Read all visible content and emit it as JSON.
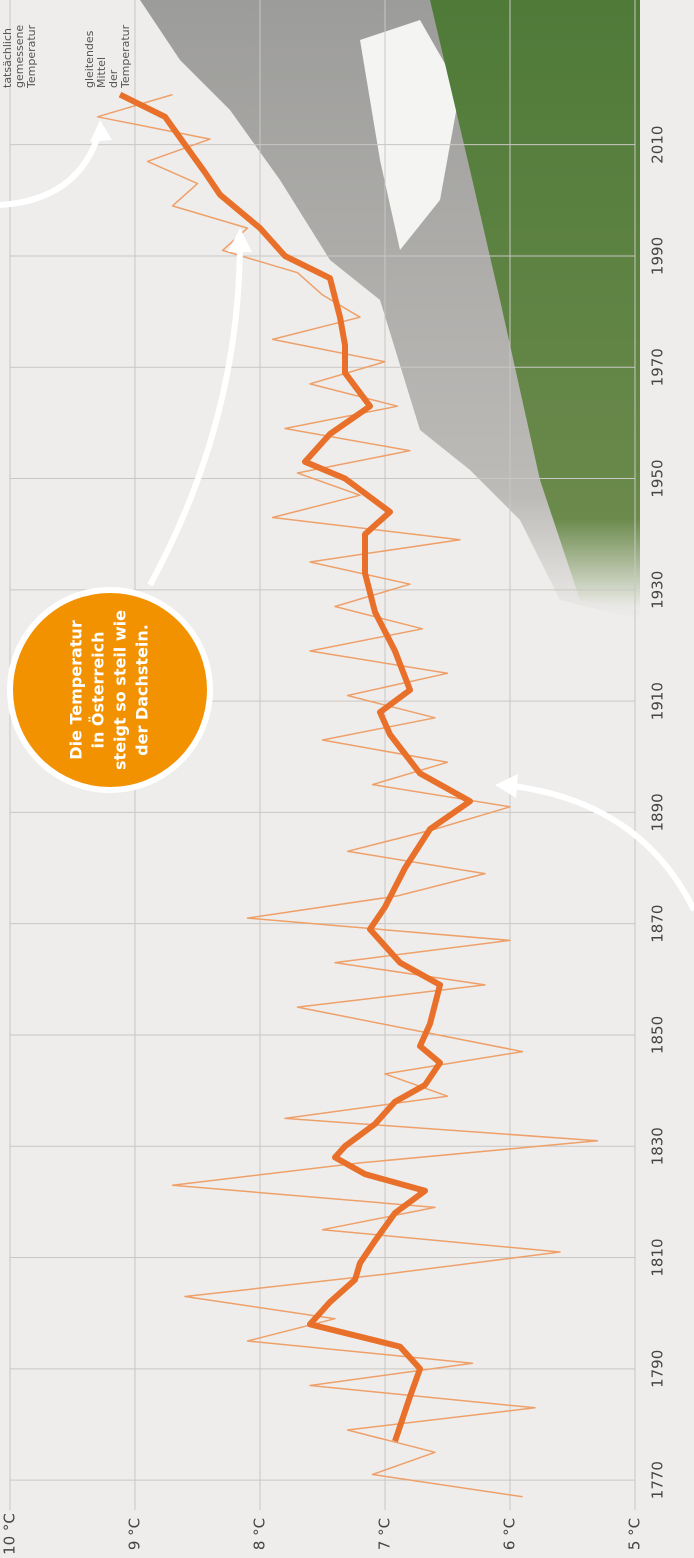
{
  "chart_data": {
    "type": "line",
    "xlim": [
      1756,
      2036
    ],
    "ylim": [
      5,
      10
    ],
    "xticks": [
      1770,
      1790,
      1810,
      1830,
      1850,
      1870,
      1890,
      1910,
      1930,
      1950,
      1970,
      1990,
      2010
    ],
    "yticks": [
      {
        "value": 5,
        "label": "5 °C"
      },
      {
        "value": 6,
        "label": "6 °C"
      },
      {
        "value": 7,
        "label": "7 °C"
      },
      {
        "value": 8,
        "label": "8 °C"
      },
      {
        "value": 9,
        "label": "9 °C"
      },
      {
        "value": 10,
        "label": "10 °C"
      }
    ],
    "grid": true,
    "series": [
      {
        "name": "tatsächlich gemessene Temperatur",
        "color": "#eea06a",
        "width": 1.5,
        "x": [
          1767,
          1771,
          1775,
          1779,
          1783,
          1787,
          1791,
          1795,
          1799,
          1803,
          1807,
          1811,
          1815,
          1819,
          1823,
          1827,
          1831,
          1835,
          1839,
          1843,
          1847,
          1851,
          1855,
          1859,
          1863,
          1867,
          1871,
          1875,
          1879,
          1883,
          1887,
          1891,
          1895,
          1899,
          1903,
          1907,
          1911,
          1915,
          1919,
          1923,
          1927,
          1931,
          1935,
          1939,
          1943,
          1947,
          1951,
          1955,
          1959,
          1963,
          1967,
          1971,
          1975,
          1979,
          1983,
          1987,
          1991,
          1995,
          1999,
          2003,
          2007,
          2011,
          2015,
          2019
        ],
        "values": [
          5.9,
          7.1,
          6.6,
          7.3,
          5.8,
          7.6,
          6.3,
          8.1,
          7.4,
          8.6,
          7.0,
          5.6,
          7.5,
          6.6,
          8.7,
          7.2,
          5.3,
          7.8,
          6.5,
          7.0,
          5.9,
          6.8,
          7.7,
          6.2,
          7.4,
          6.0,
          8.1,
          6.9,
          6.2,
          7.3,
          6.6,
          6.0,
          7.1,
          6.5,
          7.5,
          6.6,
          7.3,
          6.5,
          7.6,
          6.7,
          7.4,
          6.8,
          7.6,
          6.4,
          7.9,
          7.2,
          7.7,
          6.8,
          7.8,
          6.9,
          7.6,
          7.0,
          7.9,
          7.2,
          7.5,
          7.7,
          8.3,
          8.1,
          8.7,
          8.5,
          8.9,
          8.4,
          9.3,
          8.7
        ]
      },
      {
        "name": "gleitendes Mittel der Temperatur",
        "color": "#e8702a",
        "width": 6,
        "x": [
          1777,
          1785,
          1790,
          1794,
          1798,
          1802,
          1806,
          1809,
          1813,
          1818,
          1822,
          1825,
          1828,
          1830,
          1834,
          1838,
          1841,
          1845,
          1848,
          1852,
          1859,
          1863,
          1867,
          1869,
          1873,
          1880,
          1887,
          1892,
          1897,
          1904,
          1908,
          1912,
          1919,
          1926,
          1933,
          1940,
          1944,
          1950,
          1953,
          1958,
          1963,
          1969,
          1974,
          1979,
          1986,
          1990,
          1995,
          2001,
          2005,
          2010,
          2015,
          2019
        ],
        "values": [
          6.92,
          6.8,
          6.72,
          6.88,
          7.6,
          7.44,
          7.24,
          7.2,
          7.08,
          6.92,
          6.68,
          7.16,
          7.4,
          7.32,
          7.08,
          6.92,
          6.68,
          6.56,
          6.72,
          6.64,
          6.56,
          6.88,
          7.04,
          7.12,
          7.0,
          6.84,
          6.64,
          6.32,
          6.72,
          6.96,
          7.04,
          6.8,
          6.92,
          7.08,
          7.16,
          7.16,
          6.96,
          7.32,
          7.64,
          7.44,
          7.12,
          7.32,
          7.32,
          7.36,
          7.44,
          7.8,
          8.0,
          8.32,
          8.44,
          8.6,
          8.76,
          9.12
        ]
      }
    ],
    "bubble_text": [
      "Die Temperatur",
      "in Österreich",
      "steigt so steil wie",
      "der Dachstein."
    ]
  }
}
